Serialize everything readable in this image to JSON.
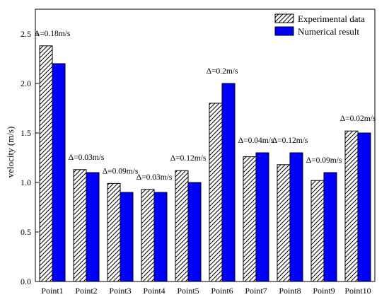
{
  "chart_data": {
    "type": "bar",
    "title": "",
    "xlabel": "",
    "ylabel": "velocity (m/s)",
    "ylim": [
      0,
      2.75
    ],
    "yticks": [
      "0.0",
      "0.5",
      "1.0",
      "1.5",
      "2.0",
      "2.5"
    ],
    "categories": [
      "Point1",
      "Point2",
      "Point3",
      "Point4",
      "Point5",
      "Point6",
      "Point7",
      "Point8",
      "Point9",
      "Point10"
    ],
    "series": [
      {
        "name": "Experimental data",
        "pattern": "hatched",
        "color": "#ffffff",
        "values": [
          2.38,
          1.13,
          0.99,
          0.93,
          1.12,
          1.8,
          1.26,
          1.18,
          1.02,
          1.52
        ]
      },
      {
        "name": "Numerical result",
        "pattern": "solid",
        "color": "#0000ff",
        "values": [
          2.2,
          1.1,
          0.9,
          0.9,
          1.0,
          2.0,
          1.3,
          1.3,
          1.1,
          1.5
        ]
      }
    ],
    "annotations": [
      "Δ=0.18m/s",
      "Δ=0.03m/s",
      "Δ=0.09m/s",
      "Δ=0.03m/s",
      "Δ=0.12m/s",
      "Δ=0.2m/s",
      "Δ=0.04m/s",
      "Δ=0.12m/s",
      "Δ=0.09m/s",
      "Δ=0.02m/s"
    ],
    "legend_position": "top-right",
    "grid": false
  }
}
